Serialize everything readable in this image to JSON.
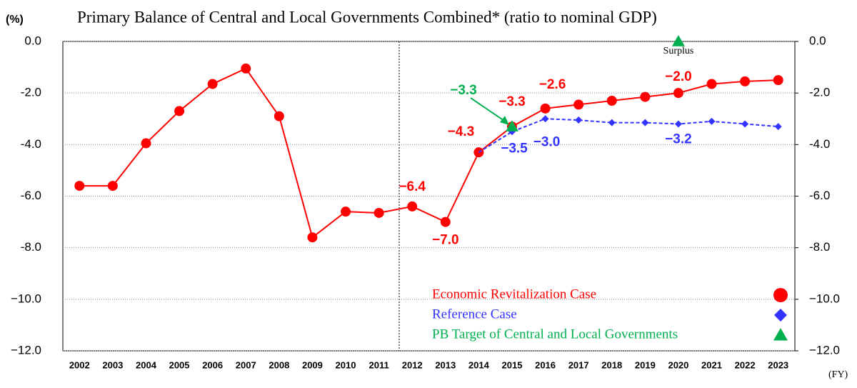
{
  "chart_data": {
    "type": "line",
    "title": "Primary Balance of Central and Local Governments Combined* (ratio to nominal GDP)",
    "y_label": "(%)",
    "x_label": "(FY)",
    "categories": [
      "2002",
      "2003",
      "2004",
      "2005",
      "2006",
      "2007",
      "2008",
      "2009",
      "2010",
      "2011",
      "2012",
      "2013",
      "2014",
      "2015",
      "2016",
      "2017",
      "2018",
      "2019",
      "2020",
      "2021",
      "2022",
      "2023"
    ],
    "series": [
      {
        "name": "Economic Revitalization Case",
        "color": "#ff0000",
        "marker": "circle",
        "values": [
          -5.6,
          -5.6,
          -3.95,
          -2.7,
          -1.65,
          -1.05,
          -2.9,
          -7.6,
          -6.6,
          -6.65,
          -6.4,
          -7.0,
          -4.3,
          -3.3,
          -2.6,
          -2.45,
          -2.3,
          -2.15,
          -2.0,
          -1.65,
          -1.55,
          -1.5
        ],
        "value_labels": [
          null,
          null,
          null,
          null,
          null,
          null,
          null,
          null,
          null,
          null,
          "−6.4",
          "−7.0",
          "−4.3",
          "−3.3",
          "−2.6",
          null,
          null,
          null,
          "−2.0",
          null,
          null,
          null
        ]
      },
      {
        "name": "Reference Case",
        "color": "#3333ff",
        "marker": "diamond",
        "dashed": true,
        "values": [
          null,
          null,
          null,
          null,
          null,
          null,
          null,
          null,
          null,
          null,
          null,
          null,
          -4.3,
          -3.5,
          -3.0,
          -3.05,
          -3.15,
          -3.15,
          -3.2,
          -3.1,
          -3.2,
          -3.3
        ],
        "value_labels": [
          null,
          null,
          null,
          null,
          null,
          null,
          null,
          null,
          null,
          null,
          null,
          null,
          null,
          "−3.5",
          "−3.0",
          null,
          null,
          null,
          "−3.2",
          null,
          null,
          null
        ]
      },
      {
        "name": "PB Target of Central  and Local Governments",
        "color": "#00b050",
        "marker": "triangle",
        "values": [
          null,
          null,
          null,
          null,
          null,
          null,
          null,
          null,
          null,
          null,
          null,
          null,
          null,
          -3.3,
          null,
          null,
          null,
          null,
          0.0,
          null,
          null,
          null
        ],
        "value_labels": [
          null,
          null,
          null,
          null,
          null,
          null,
          null,
          null,
          null,
          null,
          null,
          null,
          null,
          "−3.3",
          null,
          null,
          null,
          null,
          null,
          null,
          null,
          null
        ]
      }
    ],
    "annotations": [
      "Surplus"
    ],
    "ylim": [
      -12,
      0
    ],
    "yticks": [
      {
        "value": 0,
        "label": "0.0"
      },
      {
        "value": -2,
        "label": "-2.0"
      },
      {
        "value": -4,
        "label": "-4.0"
      },
      {
        "value": -6,
        "label": "-6.0"
      },
      {
        "value": -8,
        "label": "-8.0"
      },
      {
        "value": -10,
        "label": "−10.0"
      },
      {
        "value": -12,
        "label": "−12.0"
      }
    ],
    "y2lim": [
      -12,
      0
    ],
    "y2ticks": [
      {
        "value": 0,
        "label": "0.0"
      },
      {
        "value": -2,
        "label": "-2.0"
      },
      {
        "value": -4,
        "label": "-4.0"
      },
      {
        "value": -6,
        "label": "-6.0"
      },
      {
        "value": -8,
        "label": "-8.0"
      },
      {
        "value": -10,
        "label": "−10.0"
      },
      {
        "value": -12,
        "label": "−12.0"
      }
    ],
    "grid": true,
    "legend": "lower right"
  }
}
